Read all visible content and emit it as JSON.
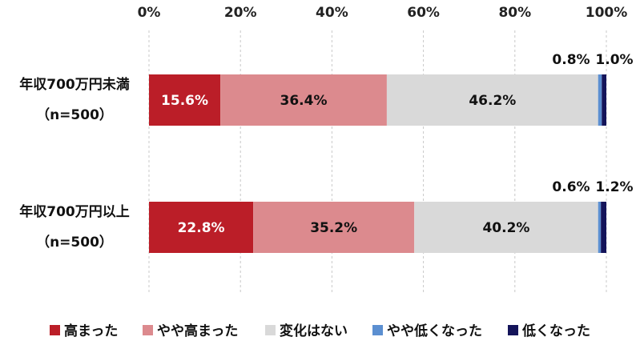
{
  "chart_data": {
    "type": "bar",
    "orientation": "horizontal",
    "stacked": true,
    "title": "",
    "xlabel": "",
    "ylabel": "",
    "xlim": [
      0,
      100
    ],
    "x_ticks": [
      "0%",
      "20%",
      "40%",
      "60%",
      "80%",
      "100%"
    ],
    "x_tick_values": [
      0,
      20,
      40,
      60,
      80,
      100
    ],
    "grid": "vertical dashed",
    "legend_position": "bottom",
    "categories": [
      {
        "line1": "年収700万円未満",
        "line2": "（n=500）"
      },
      {
        "line1": "年収700万円以上",
        "line2": "（n=500）"
      }
    ],
    "series": [
      {
        "name": "高まった",
        "color": "#bb1e28",
        "label_color": "#ffffff",
        "values": [
          15.6,
          22.8
        ],
        "labels": [
          "15.6%",
          "22.8%"
        ],
        "label_position": "inside"
      },
      {
        "name": "やや高まった",
        "color": "#dc8a8e",
        "label_color": "#111111",
        "values": [
          36.4,
          35.2
        ],
        "labels": [
          "36.4%",
          "35.2%"
        ],
        "label_position": "inside"
      },
      {
        "name": "変化はない",
        "color": "#d9d9d9",
        "label_color": "#111111",
        "values": [
          46.2,
          40.2
        ],
        "labels": [
          "46.2%",
          "40.2%"
        ],
        "label_position": "inside"
      },
      {
        "name": "やや低くなった",
        "color": "#5b8fd1",
        "label_color": "#111111",
        "values": [
          0.8,
          0.6
        ],
        "labels": [
          "0.8%",
          "0.6%"
        ],
        "label_position": "above"
      },
      {
        "name": "低くなった",
        "color": "#14145a",
        "label_color": "#111111",
        "values": [
          1.0,
          1.2
        ],
        "labels": [
          "1.0%",
          "1.2%"
        ],
        "label_position": "above"
      }
    ]
  }
}
